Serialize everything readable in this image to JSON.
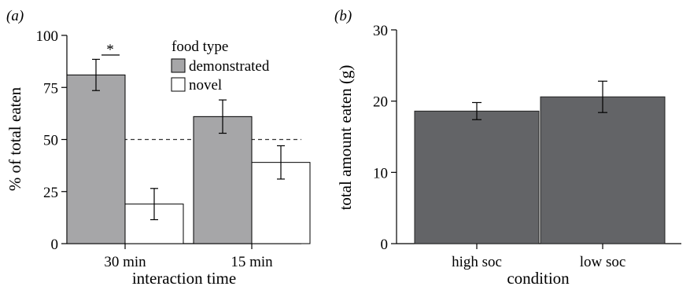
{
  "chart_data": [
    {
      "panel_label": "(a)",
      "type": "bar",
      "xlabel": "interaction time",
      "ylabel": "% of total eaten",
      "ylim": [
        0,
        100
      ],
      "yticks": [
        "0",
        "25",
        "50",
        "75",
        "100"
      ],
      "categories": [
        "30 min",
        "15 min"
      ],
      "legend_title": "food type",
      "legend_position": "top-right",
      "series": [
        {
          "name": "demonstrated",
          "color": "#a6a6a8",
          "values": [
            81,
            61
          ],
          "errors": [
            7.5,
            8
          ]
        },
        {
          "name": "novel",
          "color": "#ffffff",
          "values": [
            19,
            39
          ],
          "errors": [
            7.5,
            8
          ]
        }
      ],
      "reference_line": 50,
      "significance_marker": "*"
    },
    {
      "panel_label": "(b)",
      "type": "bar",
      "xlabel": "condition",
      "ylabel": "total amount eaten (g)",
      "ylim": [
        0,
        30
      ],
      "yticks": [
        "0",
        "10",
        "20",
        "30"
      ],
      "categories": [
        "high soc",
        "low soc"
      ],
      "color": "#636467",
      "values": [
        18.6,
        20.6
      ],
      "errors": [
        1.2,
        2.2
      ]
    }
  ]
}
